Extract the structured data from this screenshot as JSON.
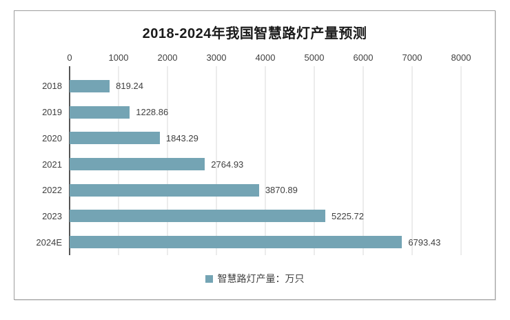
{
  "chart_data": {
    "type": "bar",
    "orientation": "horizontal",
    "title": "2018-2024年我国智慧路灯产量预测",
    "categories": [
      "2018",
      "2019",
      "2020",
      "2021",
      "2022",
      "2023",
      "2024E"
    ],
    "values": [
      819.24,
      1228.86,
      1843.29,
      2764.93,
      3870.89,
      5225.72,
      6793.43
    ],
    "value_labels": [
      "819.24",
      "1228.86",
      "1843.29",
      "2764.93",
      "3870.89",
      "5225.72",
      "6793.43"
    ],
    "x_ticks": [
      0,
      1000,
      2000,
      3000,
      4000,
      5000,
      6000,
      7000,
      8000
    ],
    "xlim": [
      0,
      8000
    ],
    "xlabel": "",
    "ylabel": "",
    "grid": true,
    "axis_position": "top",
    "legend_position": "bottom",
    "legend": [
      {
        "label": "智慧路灯产量：万只",
        "color": "#74a4b4"
      }
    ],
    "colors": {
      "bar": "#74a4b4",
      "gridline": "#d9d9d9",
      "axis_line": "#555555",
      "text": "#404040",
      "title": "#1a1a1a",
      "frame_border": "#9d9d9d"
    }
  }
}
